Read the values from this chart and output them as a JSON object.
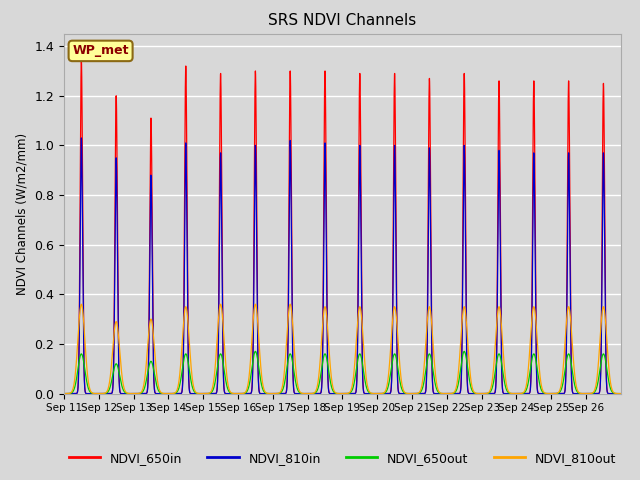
{
  "title": "SRS NDVI Channels",
  "ylabel": "NDVI Channels (W/m2/mm)",
  "annotation": "WP_met",
  "ylim": [
    0.0,
    1.45
  ],
  "yticks": [
    0.0,
    0.2,
    0.4,
    0.6,
    0.8,
    1.0,
    1.2,
    1.4
  ],
  "xtick_labels": [
    "Sep 11",
    "Sep 12",
    "Sep 13",
    "Sep 14",
    "Sep 15",
    "Sep 16",
    "Sep 17",
    "Sep 18",
    "Sep 19",
    "Sep 20",
    "Sep 21",
    "Sep 22",
    "Sep 23",
    "Sep 24",
    "Sep 25",
    "Sep 26"
  ],
  "series": {
    "NDVI_650in": {
      "color": "#FF0000",
      "peaks": [
        1.34,
        1.2,
        1.11,
        1.32,
        1.29,
        1.3,
        1.3,
        1.3,
        1.29,
        1.29,
        1.27,
        1.29,
        1.26,
        1.26,
        1.26,
        1.25
      ],
      "sigma": 0.035
    },
    "NDVI_810in": {
      "color": "#0000CC",
      "peaks": [
        1.03,
        0.95,
        0.88,
        1.01,
        0.97,
        1.0,
        1.02,
        1.01,
        1.0,
        1.0,
        0.99,
        1.0,
        0.98,
        0.97,
        0.97,
        0.97
      ],
      "sigma": 0.035
    },
    "NDVI_650out": {
      "color": "#00CC00",
      "peaks": [
        0.16,
        0.12,
        0.13,
        0.16,
        0.16,
        0.17,
        0.16,
        0.16,
        0.16,
        0.16,
        0.16,
        0.17,
        0.16,
        0.16,
        0.16,
        0.16
      ],
      "sigma": 0.1
    },
    "NDVI_810out": {
      "color": "#FFA500",
      "peaks": [
        0.36,
        0.29,
        0.3,
        0.35,
        0.36,
        0.36,
        0.36,
        0.35,
        0.35,
        0.35,
        0.35,
        0.35,
        0.35,
        0.35,
        0.35,
        0.35
      ],
      "sigma": 0.1
    }
  },
  "background_color": "#D8D8D8",
  "plot_bg_color": "#D8D8D8",
  "grid_color": "#FFFFFF",
  "legend_entries": [
    "NDVI_650in",
    "NDVI_810in",
    "NDVI_650out",
    "NDVI_810out"
  ],
  "legend_colors": [
    "#FF0000",
    "#0000CC",
    "#00CC00",
    "#FFA500"
  ]
}
